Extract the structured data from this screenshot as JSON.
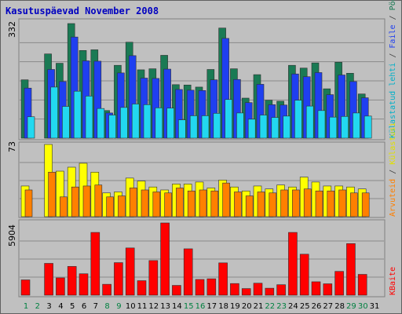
{
  "chart_data": {
    "type": "bar",
    "title": "Kasutuspäevad November 2008",
    "categories": [
      "1",
      "2",
      "3",
      "4",
      "5",
      "6",
      "7",
      "8",
      "9",
      "10",
      "11",
      "12",
      "13",
      "14",
      "15",
      "16",
      "17",
      "18",
      "19",
      "20",
      "21",
      "22",
      "23",
      "24",
      "25",
      "26",
      "27",
      "28",
      "29",
      "30",
      "31"
    ],
    "weekend_days": [
      "1",
      "2",
      "8",
      "9",
      "15",
      "16",
      "22",
      "23",
      "29",
      "30"
    ],
    "panels": [
      {
        "id": "top",
        "max_label": "332",
        "max": 332,
        "right_labels": [
          "Pöördumisi",
          "Faile",
          "Külastatud lehti"
        ],
        "series": [
          {
            "name": "Pöördumisi",
            "color": "#1a7a54",
            "values": [
              169,
              0,
              244,
              217,
              332,
              254,
              256,
              80,
              211,
              278,
              198,
              201,
              240,
              155,
              154,
              148,
              199,
              319,
              201,
              116,
              184,
              110,
              107,
              211,
              203,
              218,
              143,
              220,
              188,
              128,
              0
            ]
          },
          {
            "name": "Faile",
            "color": "#1f3ff0",
            "values": [
              145,
              0,
              199,
              164,
              293,
              224,
              223,
              73,
              189,
              239,
              174,
              173,
              200,
              141,
              139,
              138,
              169,
              289,
              170,
              103,
              156,
              97,
              96,
              186,
              178,
              190,
              126,
              183,
              164,
              117,
              0
            ]
          },
          {
            "name": "Külastatud lehti",
            "color": "#22d8f0",
            "values": [
              62,
              0,
              148,
              92,
              136,
              122,
              86,
              67,
              89,
              99,
              97,
              88,
              87,
              53,
              65,
              65,
              72,
              112,
              73,
              55,
              67,
              60,
              64,
              110,
              93,
              80,
              61,
              63,
              73,
              64,
              0
            ]
          }
        ]
      },
      {
        "id": "middle",
        "max_label": "73",
        "max": 73,
        "right_labels": [
          "Külastusi",
          "Arvuteid"
        ],
        "series": [
          {
            "name": "Külastusi",
            "color": "#ffff00",
            "values": [
              31,
              0,
              73,
              46,
              50,
              54,
              45,
              24,
              25,
              39,
              36,
              30,
              27,
              33,
              33,
              35,
              29,
              37,
              30,
              26,
              31,
              28,
              32,
              30,
              40,
              35,
              31,
              31,
              30,
              28,
              0
            ]
          },
          {
            "name": "Arvuteid",
            "color": "#ff8000",
            "values": [
              27,
              0,
              45,
              20,
              30,
              31,
              32,
              20,
              21,
              29,
              27,
              25,
              24,
              29,
              26,
              27,
              26,
              34,
              25,
              21,
              25,
              24,
              27,
              27,
              28,
              26,
              26,
              27,
              24,
              24,
              0
            ]
          }
        ]
      },
      {
        "id": "bottom",
        "max_label": "5904",
        "max": 5904,
        "right_labels": [
          "KBaite"
        ],
        "series": [
          {
            "name": "KBaite",
            "color": "#ff0000",
            "values": [
              1250,
              0,
              2600,
              1415,
              2350,
              1750,
              5130,
              890,
              2660,
              3860,
              1185,
              2830,
              5904,
              800,
              3790,
              1285,
              1340,
              2640,
              950,
              540,
              980,
              570,
              855,
              5130,
              3350,
              1095,
              930,
              1945,
              4215,
              1700,
              0
            ]
          }
        ]
      }
    ]
  }
}
